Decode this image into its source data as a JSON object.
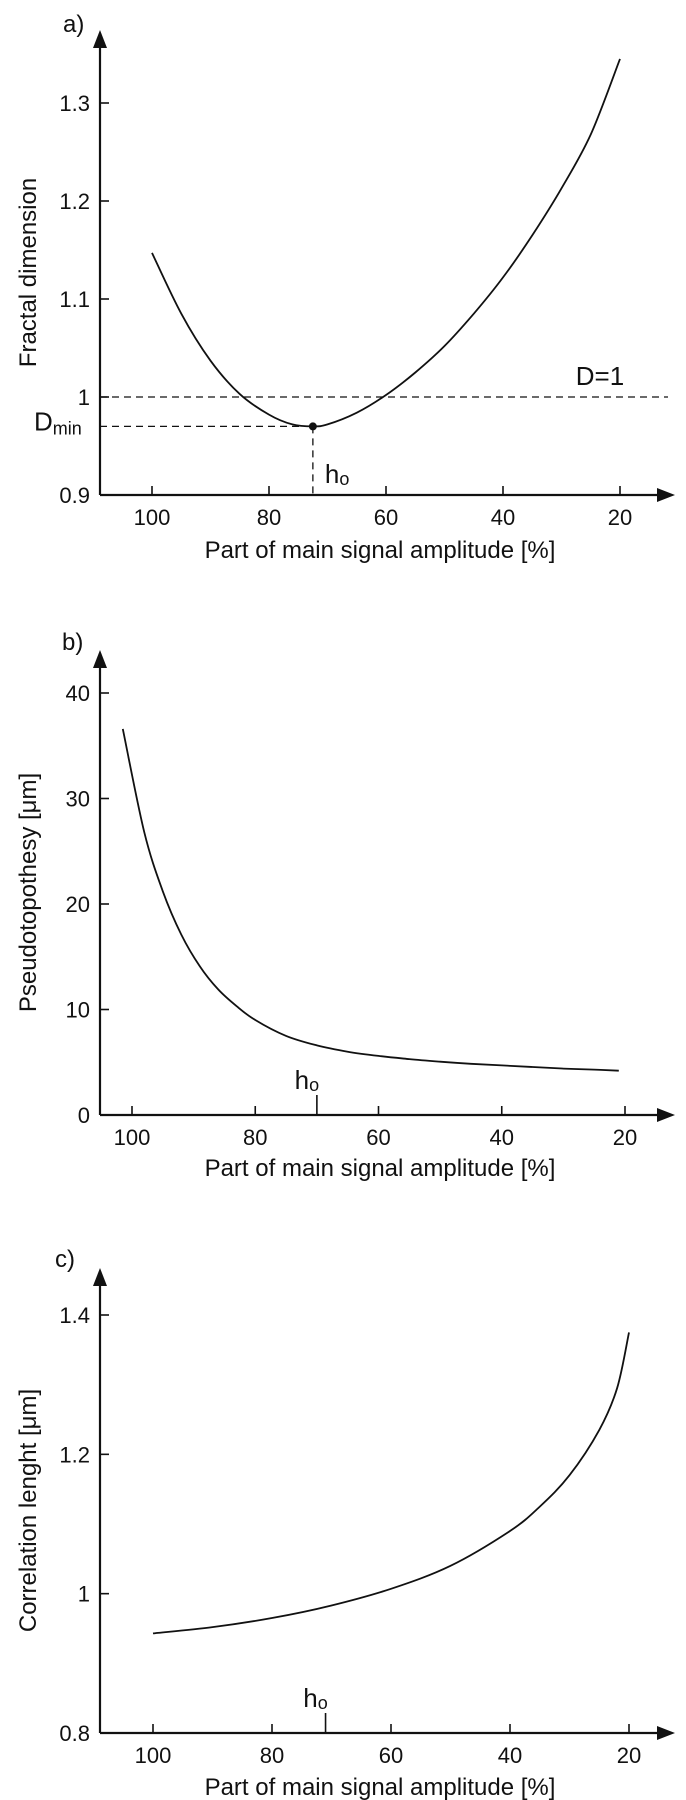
{
  "chart_data": [
    {
      "type": "line",
      "panel_label": "a)",
      "xlabel": "Part of main signal amplitude [%]",
      "ylabel": "Fractal dimension",
      "xlim": [
        110,
        11
      ],
      "ylim": [
        0.9,
        1.4
      ],
      "x_ticks": [
        100,
        80,
        60,
        40,
        20
      ],
      "y_ticks": [
        0.9,
        1,
        1.1,
        1.2,
        1.3
      ],
      "y_tick_labels": [
        "0.9",
        "1",
        "1.1",
        "1.2",
        "1.3"
      ],
      "series": [
        {
          "x": [
            100,
            95,
            90,
            85,
            80,
            76,
            72.5,
            70,
            65,
            60,
            55,
            50,
            45,
            40,
            35,
            30,
            25,
            20
          ],
          "y": [
            1.147,
            1.085,
            1.037,
            1.003,
            0.982,
            0.972,
            0.97,
            0.972,
            0.984,
            1.002,
            1.025,
            1.052,
            1.085,
            1.122,
            1.165,
            1.213,
            1.268,
            1.345
          ]
        }
      ],
      "reference_line": {
        "y": 1,
        "label": "D=1"
      },
      "min_point": {
        "x": 72.5,
        "y": 0.97,
        "y_label": "D",
        "y_label_sub": "min",
        "x_label": "h",
        "x_label_sub": "o"
      }
    },
    {
      "type": "line",
      "panel_label": "b)",
      "xlabel": "Part of main signal amplitude [%]",
      "ylabel": "Pseudotopothesy [μm]",
      "xlim": [
        105,
        12
      ],
      "ylim": [
        0,
        45
      ],
      "x_ticks": [
        100,
        80,
        60,
        40,
        20
      ],
      "y_ticks": [
        0,
        10,
        20,
        30,
        40
      ],
      "y_tick_labels": [
        "0",
        "10",
        "20",
        "30",
        "40"
      ],
      "series": [
        {
          "x": [
            101.5,
            98,
            95,
            92,
            89,
            86,
            83,
            80,
            75,
            70,
            65,
            60,
            55,
            50,
            45,
            40,
            35,
            30,
            25,
            21
          ],
          "y": [
            36.6,
            26.8,
            21.2,
            17.1,
            14.1,
            11.9,
            10.3,
            9.0,
            7.5,
            6.6,
            6.0,
            5.6,
            5.3,
            5.05,
            4.85,
            4.7,
            4.55,
            4.4,
            4.3,
            4.2
          ]
        }
      ],
      "marker": {
        "x": 70,
        "label": "h",
        "label_sub": "o"
      }
    },
    {
      "type": "line",
      "panel_label": "c)",
      "xlabel": "Part of main signal amplitude [%]",
      "ylabel": "Correlation lenght [μm]",
      "xlim": [
        110,
        12
      ],
      "ylim": [
        0.8,
        1.45
      ],
      "x_ticks": [
        100,
        80,
        60,
        40,
        20
      ],
      "y_ticks": [
        0.8,
        1,
        1.2,
        1.4
      ],
      "y_tick_labels": [
        "0.8",
        "1",
        "1.2",
        "1.4"
      ],
      "series": [
        {
          "x": [
            100,
            90,
            80,
            70,
            60,
            50,
            40,
            35,
            30,
            25,
            22,
            20
          ],
          "y": [
            0.943,
            0.952,
            0.965,
            0.983,
            1.007,
            1.04,
            1.09,
            1.125,
            1.17,
            1.235,
            1.295,
            1.375
          ]
        }
      ],
      "marker": {
        "x": 71,
        "label": "h",
        "label_sub": "o"
      }
    }
  ]
}
